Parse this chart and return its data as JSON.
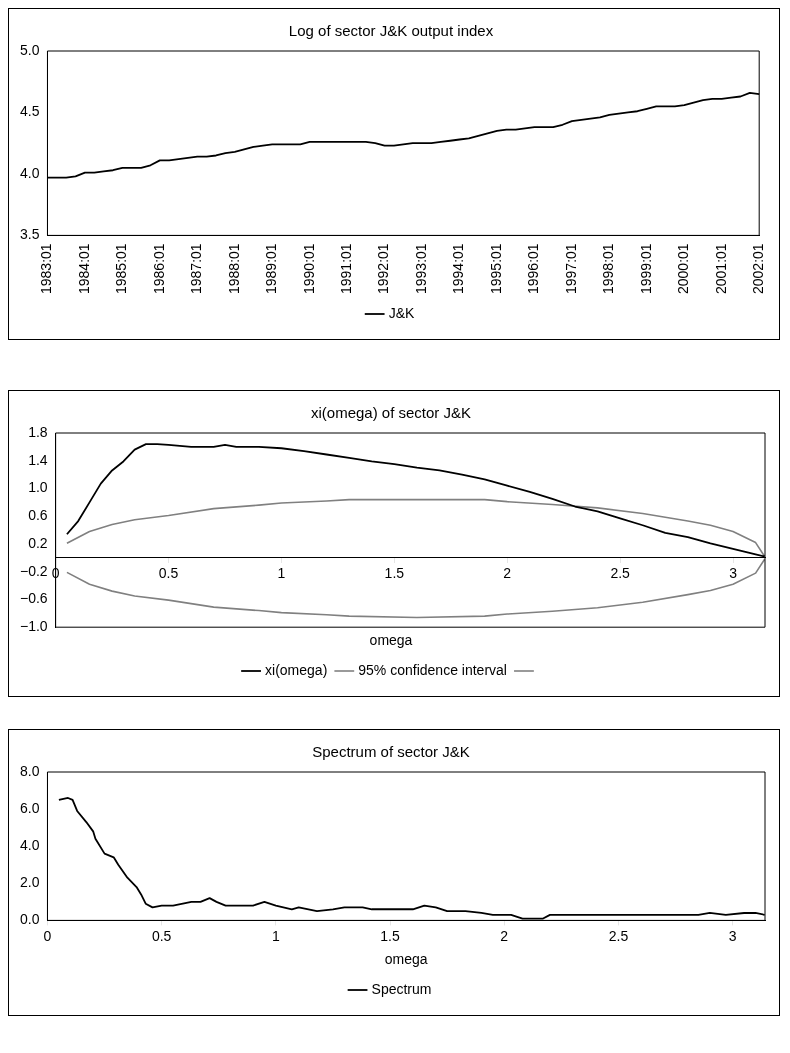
{
  "chart_data": [
    {
      "type": "line",
      "title": "Log of sector J&K output index",
      "categories": [
        "1983:01",
        null,
        null,
        null,
        "1984:01",
        null,
        null,
        null,
        "1985:01",
        null,
        null,
        null,
        "1986:01",
        null,
        null,
        null,
        "1987:01",
        null,
        null,
        null,
        "1988:01",
        null,
        null,
        null,
        "1989:01",
        null,
        null,
        null,
        "1990:01",
        null,
        null,
        null,
        "1991:01",
        null,
        null,
        null,
        "1992:01",
        null,
        null,
        null,
        "1993:01",
        null,
        null,
        null,
        "1994:01",
        null,
        null,
        null,
        "1995:01",
        null,
        null,
        null,
        "1996:01",
        null,
        null,
        null,
        "1997:01",
        null,
        null,
        null,
        "1998:01",
        null,
        null,
        null,
        "1999:01",
        null,
        null,
        null,
        "2000:01",
        null,
        null,
        null,
        "2001:01",
        null,
        null,
        null,
        "2002:01"
      ],
      "series": [
        {
          "name": "J&K",
          "color": "#000000",
          "values": [
            3.97,
            3.97,
            3.97,
            3.98,
            4.01,
            4.01,
            4.02,
            4.03,
            4.05,
            4.05,
            4.05,
            4.07,
            4.11,
            4.11,
            4.12,
            4.13,
            4.14,
            4.14,
            4.15,
            4.17,
            4.18,
            4.2,
            4.22,
            4.23,
            4.24,
            4.24,
            4.24,
            4.24,
            4.26,
            4.26,
            4.26,
            4.26,
            4.26,
            4.26,
            4.26,
            4.25,
            4.23,
            4.23,
            4.24,
            4.25,
            4.25,
            4.25,
            4.26,
            4.27,
            4.28,
            4.29,
            4.31,
            4.33,
            4.35,
            4.36,
            4.36,
            4.37,
            4.38,
            4.38,
            4.38,
            4.4,
            4.43,
            4.44,
            4.45,
            4.46,
            4.48,
            4.49,
            4.5,
            4.51,
            4.53,
            4.55,
            4.55,
            4.55,
            4.56,
            4.58,
            4.6,
            4.61,
            4.61,
            4.62,
            4.63,
            4.66,
            4.65
          ]
        }
      ],
      "ylim": [
        3.5,
        5.0
      ],
      "yticks": [
        {
          "value": 3.5,
          "label": "3.5"
        },
        {
          "value": 4.0,
          "label": "4.0"
        },
        {
          "value": 4.5,
          "label": "4.5"
        },
        {
          "value": 5.0,
          "label": "5.0"
        }
      ],
      "grid": false,
      "legend": "bottom",
      "marker": "none"
    },
    {
      "type": "line",
      "title": "xi(omega) of sector J&K",
      "xlabel": "omega",
      "series": [
        {
          "name": "xi(omega)",
          "color": "#000000",
          "x": [
            0.05,
            0.1,
            0.15,
            0.2,
            0.25,
            0.3,
            0.35,
            0.4,
            0.45,
            0.5,
            0.6,
            0.7,
            0.75,
            0.8,
            0.9,
            1.0,
            1.1,
            1.2,
            1.3,
            1.4,
            1.5,
            1.6,
            1.7,
            1.8,
            1.9,
            2.0,
            2.1,
            2.2,
            2.3,
            2.4,
            2.5,
            2.6,
            2.7,
            2.8,
            2.9,
            3.0,
            3.1,
            3.14
          ],
          "values": [
            0.34,
            0.53,
            0.8,
            1.07,
            1.26,
            1.39,
            1.56,
            1.64,
            1.64,
            1.63,
            1.6,
            1.6,
            1.63,
            1.6,
            1.6,
            1.58,
            1.54,
            1.49,
            1.44,
            1.39,
            1.35,
            1.3,
            1.26,
            1.2,
            1.13,
            1.04,
            0.95,
            0.85,
            0.74,
            0.67,
            0.57,
            0.47,
            0.36,
            0.3,
            0.21,
            0.13,
            0.05,
            0.02
          ]
        },
        {
          "name": "95% confidence interval",
          "color": "#808080",
          "x": [
            0.05,
            0.15,
            0.25,
            0.35,
            0.5,
            0.7,
            0.9,
            1.0,
            1.2,
            1.3,
            1.6,
            1.9,
            2.0,
            2.2,
            2.4,
            2.6,
            2.8,
            2.9,
            3.0,
            3.1,
            3.14
          ],
          "values": [
            0.21,
            0.38,
            0.48,
            0.55,
            0.61,
            0.71,
            0.76,
            0.79,
            0.82,
            0.84,
            0.84,
            0.84,
            0.81,
            0.77,
            0.72,
            0.64,
            0.53,
            0.47,
            0.38,
            0.22,
            0.02
          ]
        },
        {
          "color": "#808080",
          "x": [
            0.05,
            0.15,
            0.25,
            0.35,
            0.5,
            0.7,
            0.9,
            1.0,
            1.2,
            1.3,
            1.6,
            1.9,
            2.0,
            2.2,
            2.4,
            2.6,
            2.8,
            2.9,
            3.0,
            3.1,
            3.14
          ],
          "values": [
            -0.21,
            -0.38,
            -0.48,
            -0.55,
            -0.61,
            -0.71,
            -0.76,
            -0.79,
            -0.82,
            -0.84,
            -0.86,
            -0.84,
            -0.81,
            -0.77,
            -0.72,
            -0.64,
            -0.53,
            -0.47,
            -0.38,
            -0.22,
            -0.02
          ]
        }
      ],
      "xlim": [
        0,
        3.1416
      ],
      "xticks": [
        0,
        0.5,
        1,
        1.5,
        2,
        2.5,
        3
      ],
      "ylim": [
        -1.0,
        1.8
      ],
      "yticks": [
        {
          "value": -1.0,
          "label": "−1.0"
        },
        {
          "value": -0.6,
          "label": "−0.6"
        },
        {
          "value": -0.2,
          "label": "−0.2"
        },
        {
          "value": 0.2,
          "label": "0.2"
        },
        {
          "value": 0.6,
          "label": "0.6"
        },
        {
          "value": 1.0,
          "label": "1.0"
        },
        {
          "value": 1.4,
          "label": "1.4"
        },
        {
          "value": 1.8,
          "label": "1.8"
        }
      ],
      "grid": false,
      "legend": "bottom",
      "marker": "none"
    },
    {
      "type": "line",
      "title": "Spectrum of sector J&K",
      "xlabel": "omega",
      "series": [
        {
          "name": "Spectrum",
          "color": "#000000",
          "x": [
            0.05,
            0.09,
            0.11,
            0.13,
            0.17,
            0.2,
            0.21,
            0.25,
            0.29,
            0.31,
            0.35,
            0.39,
            0.41,
            0.43,
            0.46,
            0.5,
            0.55,
            0.63,
            0.67,
            0.71,
            0.74,
            0.78,
            0.9,
            0.95,
            1.0,
            1.07,
            1.1,
            1.18,
            1.25,
            1.3,
            1.38,
            1.42,
            1.5,
            1.6,
            1.65,
            1.7,
            1.75,
            1.83,
            1.9,
            1.95,
            2.03,
            2.08,
            2.17,
            2.2,
            2.5,
            2.55,
            2.6,
            2.65,
            2.75,
            2.85,
            2.9,
            2.97,
            3.05,
            3.1,
            3.14
          ],
          "values": [
            6.5,
            6.6,
            6.5,
            5.9,
            5.3,
            4.8,
            4.4,
            3.6,
            3.4,
            3.0,
            2.3,
            1.8,
            1.4,
            0.9,
            0.7,
            0.8,
            0.8,
            1.0,
            1.0,
            1.2,
            1.0,
            0.8,
            0.8,
            1.0,
            0.8,
            0.6,
            0.7,
            0.5,
            0.6,
            0.7,
            0.7,
            0.6,
            0.6,
            0.6,
            0.8,
            0.7,
            0.5,
            0.5,
            0.4,
            0.3,
            0.3,
            0.1,
            0.1,
            0.3,
            0.3,
            0.3,
            0.3,
            0.3,
            0.3,
            0.3,
            0.4,
            0.3,
            0.4,
            0.4,
            0.3
          ]
        }
      ],
      "xlim": [
        0,
        3.1416
      ],
      "xticks": [
        0,
        0.5,
        1,
        1.5,
        2,
        2.5,
        3
      ],
      "ylim": [
        0,
        8.0
      ],
      "yticks": [
        {
          "value": 0,
          "label": "0.0"
        },
        {
          "value": 2.0,
          "label": "2.0"
        },
        {
          "value": 4.0,
          "label": "4.0"
        },
        {
          "value": 6.0,
          "label": "6.0"
        },
        {
          "value": 8.0,
          "label": "8.0"
        }
      ],
      "grid": false,
      "legend": "bottom",
      "marker": "none"
    }
  ]
}
